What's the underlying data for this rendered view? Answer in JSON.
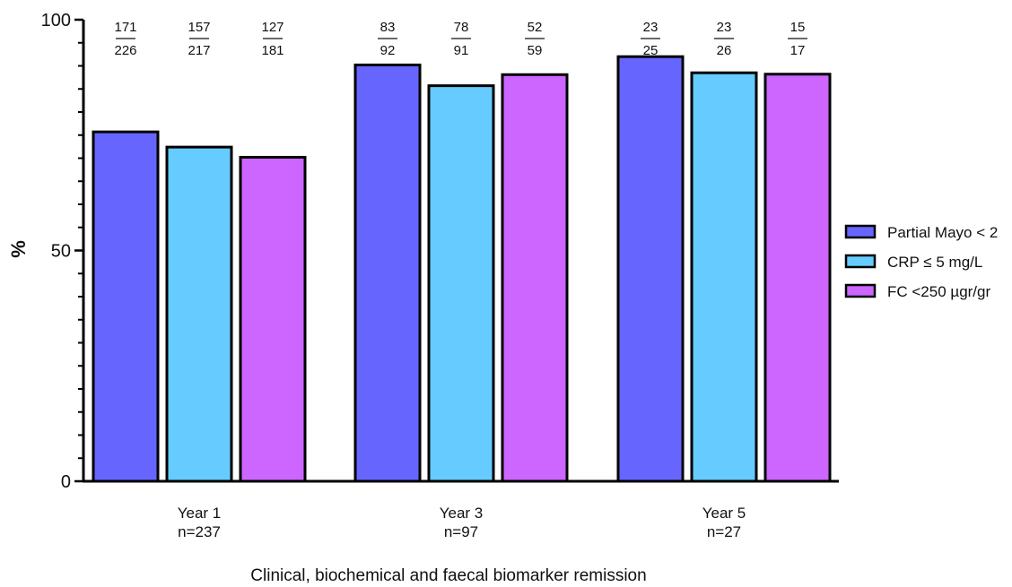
{
  "chart_data": {
    "type": "bar",
    "ylabel": "%",
    "xlabel": "Clinical, biochemical and faecal biomarker remission",
    "ylim": [
      0,
      100
    ],
    "yticks": [
      0,
      50,
      100
    ],
    "grid": false,
    "legend_position": "right",
    "categories": [
      {
        "label": "Year 1",
        "n": "n=237"
      },
      {
        "label": "Year 3",
        "n": "n=97"
      },
      {
        "label": "Year 5",
        "n": "n=27"
      }
    ],
    "series": [
      {
        "name": "Partial Mayo < 2",
        "color": "#6666ff",
        "values": [
          75.7,
          90.2,
          92.0
        ],
        "numerators": [
          "171",
          "83",
          "23"
        ],
        "denominators": [
          "226",
          "92",
          "25"
        ]
      },
      {
        "name": "CRP ≤ 5 mg/L",
        "color": "#66ccff",
        "values": [
          72.4,
          85.7,
          88.5
        ],
        "numerators": [
          "157",
          "78",
          "23"
        ],
        "denominators": [
          "217",
          "91",
          "26"
        ]
      },
      {
        "name": "FC <250 µgr/gr",
        "color": "#cc66ff",
        "values": [
          70.2,
          88.1,
          88.2
        ],
        "numerators": [
          "127",
          "52",
          "15"
        ],
        "denominators": [
          "181",
          "59",
          "17"
        ]
      }
    ]
  }
}
